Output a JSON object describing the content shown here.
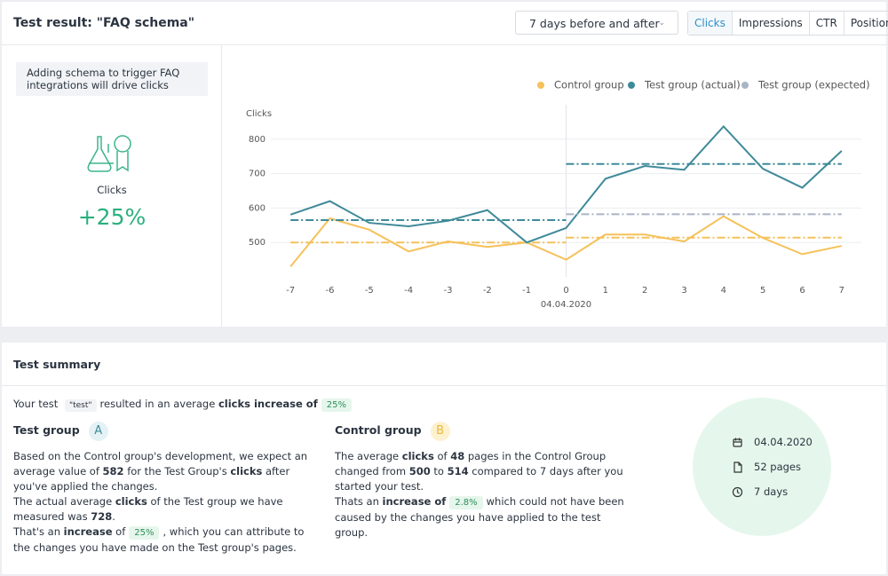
{
  "header": {
    "title": "Test result: \"FAQ schema\"",
    "dropdown": "7 days before and after",
    "tabs": [
      "Clicks",
      "Impressions",
      "CTR",
      "Position"
    ],
    "active_tab": 0
  },
  "sidebar": {
    "hypothesis": "Adding schema to trigger FAQ integrations will drive clicks",
    "metric": "Clicks",
    "change": "+25%"
  },
  "chart_data": {
    "type": "line",
    "y_label": "Clicks",
    "x": [
      -7,
      -6,
      -5,
      -4,
      -3,
      -2,
      -1,
      0,
      1,
      2,
      3,
      4,
      5,
      6,
      7
    ],
    "xlim": [
      -7.5,
      7.5
    ],
    "xticks": [
      -7,
      -6,
      -5,
      -4,
      -3,
      -2,
      -1,
      0,
      1,
      2,
      3,
      4,
      5,
      6,
      7
    ],
    "ylim": [
      400,
      900
    ],
    "yticks": [
      500,
      600,
      700,
      800
    ],
    "grid": true,
    "marker": {
      "x": 0,
      "label": "04.04.2020"
    },
    "series": [
      {
        "name": "Control group",
        "color": "#f5c15a",
        "values": [
          430,
          570,
          537,
          474,
          503,
          487,
          500,
          450,
          523,
          523,
          503,
          576,
          513,
          466,
          490
        ],
        "averages": [
          {
            "x": [
              -7,
              0
            ],
            "value": 500
          },
          {
            "x": [
              0,
              7
            ],
            "value": 514
          }
        ]
      },
      {
        "name": "Test group (actual)",
        "color": "#3f8a99",
        "values": [
          581,
          620,
          557,
          547,
          563,
          594,
          500,
          542,
          685,
          722,
          711,
          837,
          714,
          659,
          766
        ],
        "averages": [
          {
            "x": [
              -7,
              0
            ],
            "value": 565
          },
          {
            "x": [
              0,
              7
            ],
            "value": 728
          }
        ]
      },
      {
        "name": "Test group (expected)",
        "color": "#a9b4c4",
        "averages": [
          {
            "x": [
              0,
              7
            ],
            "value": 582
          }
        ]
      }
    ]
  },
  "summary": {
    "title": "Test summary",
    "intro": [
      {
        "t": "Your test"
      },
      {
        "t": "\"test\"",
        "s": "code"
      },
      {
        "t": "resulted in an average"
      },
      {
        "t": "clicks increase of",
        "s": "b"
      },
      {
        "t": "25%",
        "s": "tag"
      }
    ],
    "groups": [
      {
        "title": "Test group",
        "badge": "A",
        "paragraphs": [
          [
            {
              "t": "Based on the Control group's development, we expect an average value of "
            },
            {
              "t": "582",
              "s": "b"
            },
            {
              "t": " for the Test Group's "
            },
            {
              "t": "clicks",
              "s": "b"
            },
            {
              "t": " after you've applied the changes."
            }
          ],
          [
            {
              "t": "The actual average "
            },
            {
              "t": "clicks",
              "s": "b"
            },
            {
              "t": " of the Test group we have measured was "
            },
            {
              "t": "728",
              "s": "b"
            },
            {
              "t": "."
            }
          ],
          [
            {
              "t": "That's an "
            },
            {
              "t": "increase",
              "s": "b"
            },
            {
              "t": " of"
            },
            {
              "t": "25%",
              "s": "tag"
            },
            {
              "t": ", which you can attribute to the changes you have made on the Test group's pages."
            }
          ]
        ]
      },
      {
        "title": "Control group",
        "badge": "B",
        "paragraphs": [
          [
            {
              "t": "The average "
            },
            {
              "t": "clicks",
              "s": "b"
            },
            {
              "t": " of "
            },
            {
              "t": "48",
              "s": "b"
            },
            {
              "t": " pages in the Control Group changed from "
            },
            {
              "t": "500",
              "s": "b"
            },
            {
              "t": " to "
            },
            {
              "t": "514",
              "s": "b"
            },
            {
              "t": " compared to 7 days after you started your test."
            }
          ],
          [
            {
              "t": "Thats an "
            },
            {
              "t": "increase of",
              "s": "b"
            },
            {
              "t": "2.8%",
              "s": "tag"
            },
            {
              "t": "which could not have been caused by the changes you have applied to the test group."
            }
          ]
        ]
      }
    ],
    "info": [
      "04.04.2020",
      "52 pages",
      "7 days"
    ]
  }
}
